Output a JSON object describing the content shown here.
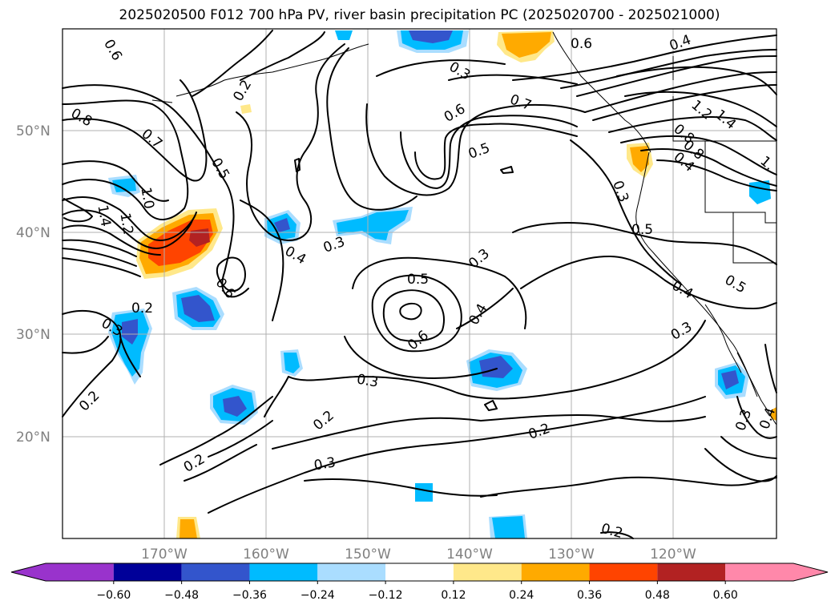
{
  "title": "2025020500 F012 700 hPa PV, river basin precipitation PC (2025020700 - 2025021000)",
  "axes": {
    "lat_labels": [
      "50°N",
      "40°N",
      "30°N",
      "20°N"
    ],
    "lon_labels": [
      "170°W",
      "160°W",
      "150°W",
      "140°W",
      "130°W",
      "120°W"
    ],
    "grid": true
  },
  "contour_labels": [
    "0.6",
    "0.2",
    "0.8",
    "0.7",
    "0.5",
    "1.0",
    "1.4",
    "1.2",
    "0.2",
    "0.3",
    "0.6",
    "0.4",
    "0.3",
    "0.3",
    "0.5",
    "0.6",
    "0.4",
    "0.3",
    "0.2",
    "0.2",
    "0.3",
    "0.2",
    "0.2",
    "0.6",
    "0.3",
    "0.6",
    "0.7",
    "0.5",
    "0.4",
    "0.3",
    "0.5",
    "0.4",
    "0.3",
    "0.5",
    "0.3",
    "0.4",
    "0.2",
    "1.2",
    "1.4",
    "0.8",
    "0.8",
    "0.4",
    "1."
  ],
  "colorbar": {
    "ticks": [
      "−0.60",
      "−0.48",
      "−0.36",
      "−0.24",
      "−0.12",
      "0.12",
      "0.24",
      "0.36",
      "0.48",
      "0.60"
    ],
    "colors": [
      "#9933cc",
      "#000099",
      "#3355cc",
      "#00bbff",
      "#aaddff",
      "#ffffff",
      "#ffe88a",
      "#ffaa00",
      "#ff4400",
      "#b22222",
      "#ff88aa"
    ]
  }
}
